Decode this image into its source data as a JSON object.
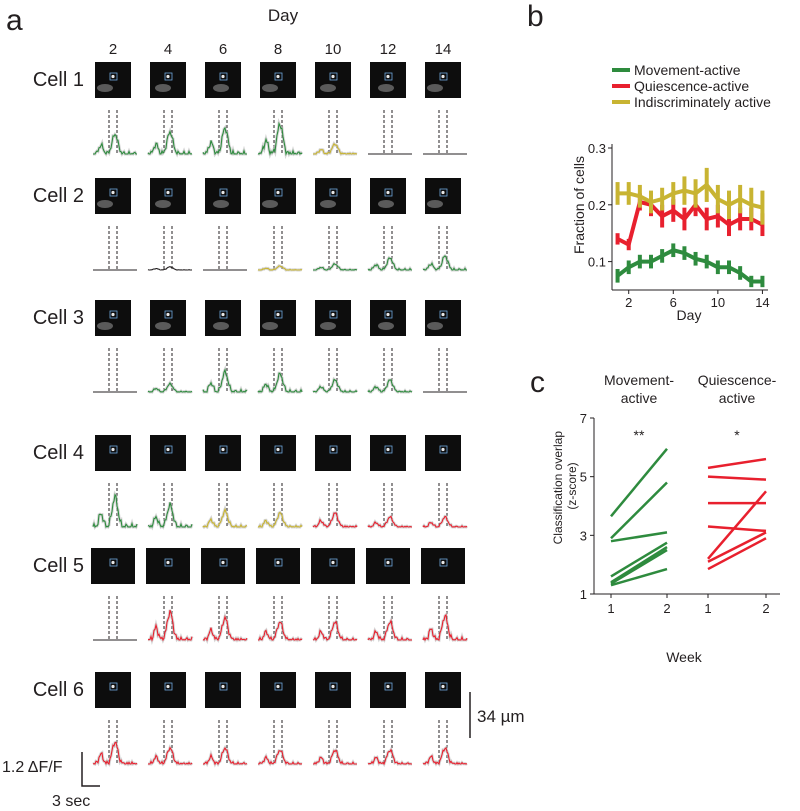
{
  "panels": {
    "a": "a",
    "b": "b",
    "c": "c"
  },
  "panel_a": {
    "x_title": "Day",
    "days": [
      "2",
      "4",
      "6",
      "8",
      "10",
      "12",
      "14"
    ],
    "cells": [
      {
        "label": "Cell 1",
        "traces": [
          "green",
          "green",
          "green",
          "green",
          "yellow",
          "black",
          "black"
        ],
        "amps": [
          0.5,
          0.55,
          0.65,
          0.75,
          0.25,
          0.05,
          0.05
        ]
      },
      {
        "label": "Cell 2",
        "traces": [
          "black",
          "black",
          "black",
          "yellow",
          "green",
          "green",
          "green"
        ],
        "amps": [
          0.05,
          0.08,
          0.05,
          0.1,
          0.15,
          0.3,
          0.35
        ]
      },
      {
        "label": "Cell 3",
        "traces": [
          "black",
          "green",
          "green",
          "green",
          "green",
          "green",
          "black"
        ],
        "amps": [
          0.05,
          0.2,
          0.5,
          0.45,
          0.3,
          0.3,
          0.05
        ]
      },
      {
        "label": "Cell 4",
        "traces": [
          "green",
          "green",
          "yellow",
          "yellow",
          "red",
          "red",
          "red"
        ],
        "amps": [
          0.75,
          0.55,
          0.4,
          0.35,
          0.35,
          0.25,
          0.25
        ]
      },
      {
        "label": "Cell 5",
        "traces": [
          "black",
          "red",
          "red",
          "red",
          "red",
          "red",
          "red"
        ],
        "amps": [
          0.05,
          0.7,
          0.55,
          0.45,
          0.45,
          0.45,
          0.6
        ]
      },
      {
        "label": "Cell 6",
        "traces": [
          "red",
          "red",
          "red",
          "red",
          "red",
          "red",
          "red"
        ],
        "amps": [
          0.55,
          0.4,
          0.4,
          0.35,
          0.35,
          0.35,
          0.4
        ]
      }
    ],
    "scale_um": "34 µm",
    "scale_df": "1.2 ΔF/F",
    "scale_time": "3 sec"
  },
  "colors": {
    "green": "#2e8b3e",
    "red": "#e8202e",
    "yellow": "#c8b432",
    "black": "#231f20",
    "roi": "#6fa8dc"
  },
  "chart_data": [
    {
      "panel": "b",
      "type": "line",
      "title": "",
      "xlabel": "Day",
      "ylabel": "Fraction of cells",
      "x": [
        1,
        2,
        3,
        4,
        5,
        6,
        7,
        8,
        9,
        10,
        11,
        12,
        13,
        14
      ],
      "xticks": [
        "2",
        "6",
        "10",
        "14"
      ],
      "xtick_values": [
        2,
        6,
        10,
        14
      ],
      "yticks": [
        "0.1",
        "0.2",
        "0.3"
      ],
      "ytick_values": [
        0.1,
        0.2,
        0.3
      ],
      "xlim": [
        0.5,
        14.5
      ],
      "ylim": [
        0.05,
        0.3
      ],
      "legend": "top",
      "series": [
        {
          "name": "Movement-active",
          "color": "#2e8b3e",
          "values": [
            0.075,
            0.09,
            0.1,
            0.1,
            0.11,
            0.12,
            0.115,
            0.105,
            0.1,
            0.09,
            0.09,
            0.08,
            0.065,
            0.065
          ],
          "err": [
            0.012,
            0.012,
            0.012,
            0.012,
            0.012,
            0.012,
            0.012,
            0.012,
            0.012,
            0.012,
            0.012,
            0.012,
            0.01,
            0.01
          ]
        },
        {
          "name": "Quiescence-active",
          "color": "#e8202e",
          "values": [
            0.14,
            0.13,
            0.205,
            0.2,
            0.18,
            0.19,
            0.175,
            0.2,
            0.175,
            0.18,
            0.165,
            0.175,
            0.175,
            0.165
          ],
          "err": [
            0.01,
            0.01,
            0.015,
            0.02,
            0.02,
            0.02,
            0.02,
            0.02,
            0.02,
            0.02,
            0.02,
            0.02,
            0.02,
            0.02
          ]
        },
        {
          "name": "Indiscriminately active",
          "color": "#c8b432",
          "values": [
            0.22,
            0.22,
            0.215,
            0.205,
            0.21,
            0.22,
            0.225,
            0.22,
            0.235,
            0.21,
            0.2,
            0.21,
            0.2,
            0.195
          ],
          "err": [
            0.02,
            0.02,
            0.02,
            0.02,
            0.02,
            0.02,
            0.025,
            0.025,
            0.03,
            0.025,
            0.025,
            0.025,
            0.03,
            0.03
          ]
        }
      ]
    },
    {
      "panel": "c",
      "type": "line",
      "xlabel": "Week",
      "ylabel": "Classification overlap (z-score)",
      "groups": [
        {
          "name": "Movement-active",
          "significance": "**",
          "color": "#2e8b3e",
          "pairs": [
            [
              3.65,
              5.95
            ],
            [
              2.9,
              4.8
            ],
            [
              2.8,
              3.1
            ],
            [
              1.6,
              2.75
            ],
            [
              1.4,
              2.6
            ],
            [
              1.35,
              2.5
            ],
            [
              1.3,
              1.85
            ]
          ]
        },
        {
          "name": "Quiescence-active",
          "significance": "*",
          "color": "#e8202e",
          "pairs": [
            [
              5.3,
              5.6
            ],
            [
              5.0,
              4.9
            ],
            [
              4.1,
              4.1
            ],
            [
              3.3,
              3.15
            ],
            [
              2.2,
              4.5
            ],
            [
              2.1,
              3.1
            ],
            [
              1.85,
              2.9
            ]
          ]
        }
      ],
      "xtick_labels": [
        "1",
        "2",
        "1",
        "2"
      ],
      "yticks": [
        "1",
        "3",
        "5",
        "7"
      ],
      "ytick_values": [
        1,
        3,
        5,
        7
      ],
      "ylim": [
        1,
        7
      ]
    }
  ]
}
